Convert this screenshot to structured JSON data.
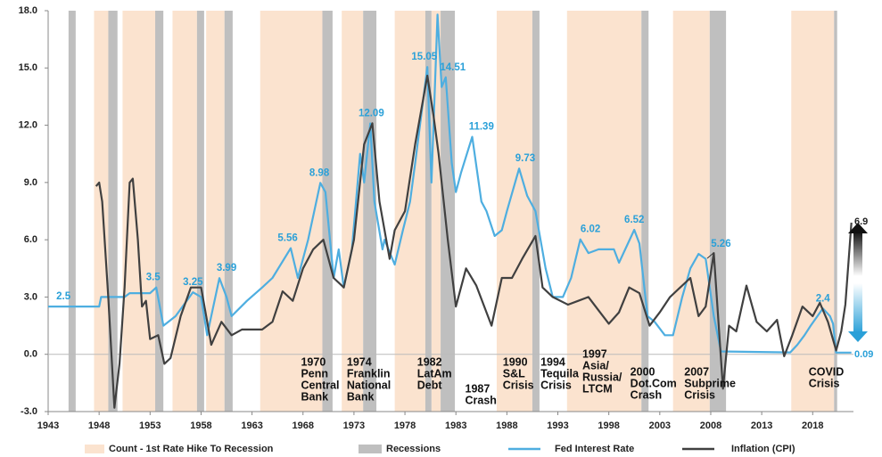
{
  "chart_data": {
    "type": "line",
    "xlim": [
      1943,
      2022
    ],
    "ylim": [
      -3,
      18
    ],
    "xticks": [
      1943,
      1948,
      1953,
      1958,
      1963,
      1968,
      1973,
      1978,
      1983,
      1988,
      1993,
      1998,
      2003,
      2008,
      2013,
      2018
    ],
    "yticks": [
      {
        "value": -3,
        "label": "-3.0"
      },
      {
        "value": 0,
        "label": "0.0"
      },
      {
        "value": 3,
        "label": "3.0"
      },
      {
        "value": 6,
        "label": "6.0"
      },
      {
        "value": 9,
        "label": "9.0"
      },
      {
        "value": 12,
        "label": "12.0"
      },
      {
        "value": 15,
        "label": "15.0"
      },
      {
        "value": 18,
        "label": "18.0"
      }
    ],
    "bands": [
      {
        "name": "Count - 1st Rate Hike To Recession",
        "color": "#fbe3cf",
        "ranges": [
          [
            1947.5,
            1948.9
          ],
          [
            1950.3,
            1953.5
          ],
          [
            1955.2,
            1957.6
          ],
          [
            1958.5,
            1960.3
          ],
          [
            1963.8,
            1969.9
          ],
          [
            1971.8,
            1973.9
          ],
          [
            1977.0,
            1980.0
          ],
          [
            1980.6,
            1981.5
          ],
          [
            1987.0,
            1990.5
          ],
          [
            1993.9,
            2001.2
          ],
          [
            2004.3,
            2007.9
          ],
          [
            2015.9,
            2020.1
          ]
        ]
      },
      {
        "name": "Recessions",
        "color": "#bfbfbf",
        "ranges": [
          [
            1945.0,
            1945.7
          ],
          [
            1948.9,
            1949.8
          ],
          [
            1953.5,
            1954.3
          ],
          [
            1957.6,
            1958.3
          ],
          [
            1960.3,
            1961.1
          ],
          [
            1969.9,
            1970.9
          ],
          [
            1973.9,
            1975.2
          ],
          [
            1980.0,
            1980.6
          ],
          [
            1981.5,
            1982.9
          ],
          [
            1990.5,
            1991.2
          ],
          [
            2001.2,
            2001.9
          ],
          [
            2007.9,
            2009.5
          ],
          [
            2020.1,
            2020.4
          ]
        ]
      }
    ],
    "series": [
      {
        "name": "Fed Interest Rate",
        "color": "#4eaee0",
        "x": [
          1943,
          1948,
          1948.2,
          1950.5,
          1951,
          1953,
          1953.6,
          1954.3,
          1955.5,
          1957.2,
          1958,
          1958.6,
          1959.8,
          1960.5,
          1961,
          1962.5,
          1964,
          1965,
          1966.8,
          1967.5,
          1968.5,
          1969.7,
          1970.2,
          1971,
          1971.5,
          1972,
          1972.8,
          1973.6,
          1974,
          1974.6,
          1975,
          1975.8,
          1976,
          1977,
          1977.8,
          1978.5,
          1979,
          1980.2,
          1980.6,
          1981.2,
          1981.6,
          1982.0,
          1982.6,
          1983,
          1983.5,
          1984.6,
          1985.5,
          1986,
          1986.8,
          1987.5,
          1988,
          1989.2,
          1990,
          1990.8,
          1991.8,
          1992.5,
          1993.5,
          1994.3,
          1995.2,
          1996,
          1997,
          1998.5,
          1999,
          2000.5,
          2001,
          2001.8,
          2002.5,
          2003.5,
          2004.3,
          2005.2,
          2006,
          2006.8,
          2007.5,
          2008.3,
          2009,
          2015.8,
          2016.5,
          2017.2,
          2017.8,
          2019.0,
          2019.7,
          2020.0,
          2020.3,
          2021.8
        ],
        "values": [
          2.5,
          2.5,
          3.0,
          3.0,
          3.2,
          3.2,
          3.5,
          1.5,
          2.0,
          3.25,
          3.0,
          1.0,
          3.99,
          3.0,
          2.0,
          2.8,
          3.5,
          4.0,
          5.56,
          4.0,
          6.0,
          8.98,
          8.5,
          4.0,
          5.5,
          3.5,
          5.5,
          10.5,
          9.0,
          12.09,
          8.0,
          5.5,
          6.0,
          4.7,
          6.5,
          8.0,
          10.0,
          15.05,
          9.0,
          17.8,
          14.0,
          14.51,
          10.0,
          8.5,
          9.5,
          11.39,
          8.0,
          7.5,
          6.2,
          6.5,
          7.5,
          9.73,
          8.3,
          7.5,
          4.5,
          3.0,
          3.0,
          4.0,
          6.02,
          5.3,
          5.5,
          5.5,
          4.8,
          6.52,
          5.8,
          2.0,
          1.7,
          1.0,
          1.0,
          3.0,
          4.5,
          5.26,
          5.0,
          2.0,
          0.15,
          0.1,
          0.5,
          1.0,
          1.5,
          2.4,
          2.0,
          1.6,
          0.09,
          0.09
        ]
      },
      {
        "name": "Inflation (CPI)",
        "color": "#404040",
        "x": [
          1947.7,
          1948,
          1948.3,
          1948.9,
          1949.5,
          1950,
          1950.5,
          1951,
          1951.3,
          1951.8,
          1952.2,
          1952.6,
          1953,
          1953.8,
          1954.4,
          1955,
          1956,
          1957,
          1958,
          1959,
          1960,
          1961,
          1962,
          1963,
          1964,
          1965,
          1966,
          1967,
          1968,
          1969,
          1970,
          1971,
          1972,
          1973,
          1974,
          1974.8,
          1975.5,
          1976.5,
          1977,
          1978,
          1979,
          1980.2,
          1980.8,
          1981.3,
          1982.2,
          1983,
          1984,
          1985,
          1986.5,
          1987.5,
          1988.5,
          1989.5,
          1990.8,
          1991.5,
          1992.5,
          1994,
          1995,
          1996,
          1997,
          1998,
          1999,
          2000,
          2001,
          2002,
          2003,
          2004,
          2005,
          2006,
          2006.8,
          2007.5,
          2008.3,
          2009.2,
          2009.8,
          2010.5,
          2011.5,
          2012.5,
          2013.5,
          2014.5,
          2015.2,
          2016,
          2017,
          2018,
          2018.7,
          2019.5,
          2020.3,
          2020.8,
          2021.2,
          2021.8
        ],
        "values": [
          8.8,
          9.0,
          8.0,
          3.0,
          -2.8,
          -0.5,
          3.5,
          9.0,
          9.2,
          6.0,
          2.5,
          2.8,
          0.8,
          1.0,
          -0.5,
          -0.2,
          2.0,
          3.5,
          3.5,
          0.5,
          1.7,
          1.0,
          1.3,
          1.3,
          1.3,
          1.7,
          3.3,
          2.8,
          4.5,
          5.5,
          6.0,
          4.0,
          3.5,
          6.0,
          11.0,
          12.1,
          8.0,
          5.0,
          6.5,
          7.5,
          11.0,
          14.6,
          12.5,
          10.5,
          6.0,
          2.5,
          4.5,
          3.6,
          1.5,
          4.0,
          4.0,
          5.0,
          6.2,
          3.5,
          3.0,
          2.6,
          2.8,
          3.0,
          2.3,
          1.6,
          2.2,
          3.5,
          3.2,
          1.5,
          2.2,
          3.0,
          3.5,
          4.0,
          2.0,
          2.5,
          5.3,
          -1.8,
          1.5,
          1.2,
          3.6,
          1.7,
          1.2,
          1.8,
          -0.1,
          1.0,
          2.5,
          2.0,
          2.7,
          1.7,
          0.2,
          1.2,
          2.6,
          6.9
        ]
      }
    ],
    "callouts": [
      {
        "x": 1944.5,
        "value": 2.5,
        "label": "2.5"
      },
      {
        "x": 1953.3,
        "value": 3.5,
        "label": "3.5"
      },
      {
        "x": 1957.2,
        "value": 3.25,
        "label": "3.25"
      },
      {
        "x": 1960.5,
        "value": 3.99,
        "label": "3.99"
      },
      {
        "x": 1966.5,
        "value": 5.56,
        "label": "5.56"
      },
      {
        "x": 1969.6,
        "value": 8.98,
        "label": "8.98"
      },
      {
        "x": 1974.7,
        "value": 12.09,
        "label": "12.09"
      },
      {
        "x": 1979.9,
        "value": 15.05,
        "label": "15.05"
      },
      {
        "x": 1982.7,
        "value": 14.51,
        "label": "14.51"
      },
      {
        "x": 1985.5,
        "value": 11.39,
        "label": "11.39"
      },
      {
        "x": 1989.8,
        "value": 9.73,
        "label": "9.73"
      },
      {
        "x": 1996.2,
        "value": 6.02,
        "label": "6.02"
      },
      {
        "x": 2000.5,
        "value": 6.52,
        "label": "6.52"
      },
      {
        "x": 2009.0,
        "value": 5.26,
        "label": "5.26"
      },
      {
        "x": 2019.0,
        "value": 2.4,
        "label": "2.4"
      }
    ],
    "events": [
      {
        "x": 1967.8,
        "lines": [
          "1970",
          "Penn",
          "Central",
          "Bank"
        ]
      },
      {
        "x": 1972.3,
        "lines": [
          "1974",
          "Franklin",
          "National",
          "Bank"
        ]
      },
      {
        "x": 1979.2,
        "lines": [
          "1982",
          "LatAm",
          "Debt"
        ]
      },
      {
        "x": 1983.9,
        "lines": [
          "1987",
          "Crash"
        ]
      },
      {
        "x": 1987.6,
        "lines": [
          "1990",
          "S&L",
          "Crisis"
        ]
      },
      {
        "x": 1991.3,
        "lines": [
          "1994",
          "Tequila",
          "Crisis"
        ]
      },
      {
        "x": 1995.4,
        "lines": [
          "1997",
          "Asia/",
          "Russia/",
          "LTCM"
        ]
      },
      {
        "x": 2000.1,
        "lines": [
          "2000",
          "Dot.Com",
          "Crash"
        ]
      },
      {
        "x": 2005.4,
        "lines": [
          "2007",
          "Subprime",
          "Crisis"
        ]
      },
      {
        "x": 2017.6,
        "lines": [
          "COVID",
          "Crisis"
        ]
      }
    ],
    "end_labels": [
      {
        "value": 6.9,
        "label": "6.9"
      },
      {
        "value": 0.09,
        "label": "0.09"
      }
    ]
  }
}
